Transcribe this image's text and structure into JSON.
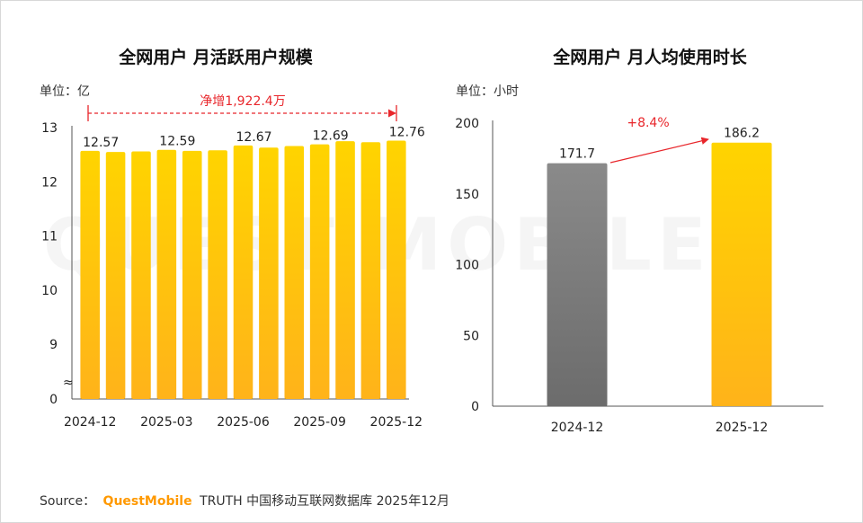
{
  "left": {
    "title": "全网用户 月活跃用户规模",
    "unit": "单位：亿",
    "annotation": "净增1,922.4万",
    "axis_break_symbol": "≈"
  },
  "right": {
    "title": "全网用户 月人均使用时长",
    "unit": "单位：小时",
    "growth": "+8.4%"
  },
  "source": {
    "prefix": "Source：",
    "brand": "QuestMobile",
    "suffix": "TRUTH 中国移动互联网数据库 2025年12月"
  },
  "watermark": "QUEST MOBILE",
  "colors": {
    "bar_gold_top": "#ffd400",
    "bar_gold_bottom": "#ffb31a",
    "bar_gray_top": "#8a8a8a",
    "bar_gray_bottom": "#6e6e6e",
    "accent_red": "#e8262b",
    "brand_orange": "#ff9900"
  },
  "chart_data": [
    {
      "type": "bar",
      "title": "全网用户 月活跃用户规模",
      "ylabel": "单位：亿",
      "ylim": [
        8,
        13
      ],
      "y_ticks": [
        "0",
        "9",
        "10",
        "11",
        "12",
        "13"
      ],
      "axis_break": true,
      "categories": [
        "2024-12",
        "2025-01",
        "2025-02",
        "2025-03",
        "2025-04",
        "2025-05",
        "2025-06",
        "2025-07",
        "2025-08",
        "2025-09",
        "2025-10",
        "2025-11",
        "2025-12"
      ],
      "x_tick_labels": [
        "2024-12",
        "2025-03",
        "2025-06",
        "2025-09",
        "2025-12"
      ],
      "values": [
        12.57,
        12.55,
        12.56,
        12.59,
        12.57,
        12.58,
        12.67,
        12.63,
        12.66,
        12.69,
        12.75,
        12.73,
        12.76
      ],
      "data_labels": [
        {
          "index": 0,
          "text": "12.57"
        },
        {
          "index": 3,
          "text": "12.59"
        },
        {
          "index": 6,
          "text": "12.67"
        },
        {
          "index": 9,
          "text": "12.69"
        },
        {
          "index": 12,
          "text": "12.76"
        }
      ],
      "annotation": "净增1,922.4万"
    },
    {
      "type": "bar",
      "title": "全网用户 月人均使用时长",
      "ylabel": "单位：小时",
      "ylim": [
        0,
        200
      ],
      "y_ticks": [
        "0",
        "50",
        "100",
        "150",
        "200"
      ],
      "categories": [
        "2024-12",
        "2025-12"
      ],
      "values": [
        171.7,
        186.2
      ],
      "data_labels": [
        "171.7",
        "186.2"
      ],
      "annotation": "+8.4%"
    }
  ]
}
